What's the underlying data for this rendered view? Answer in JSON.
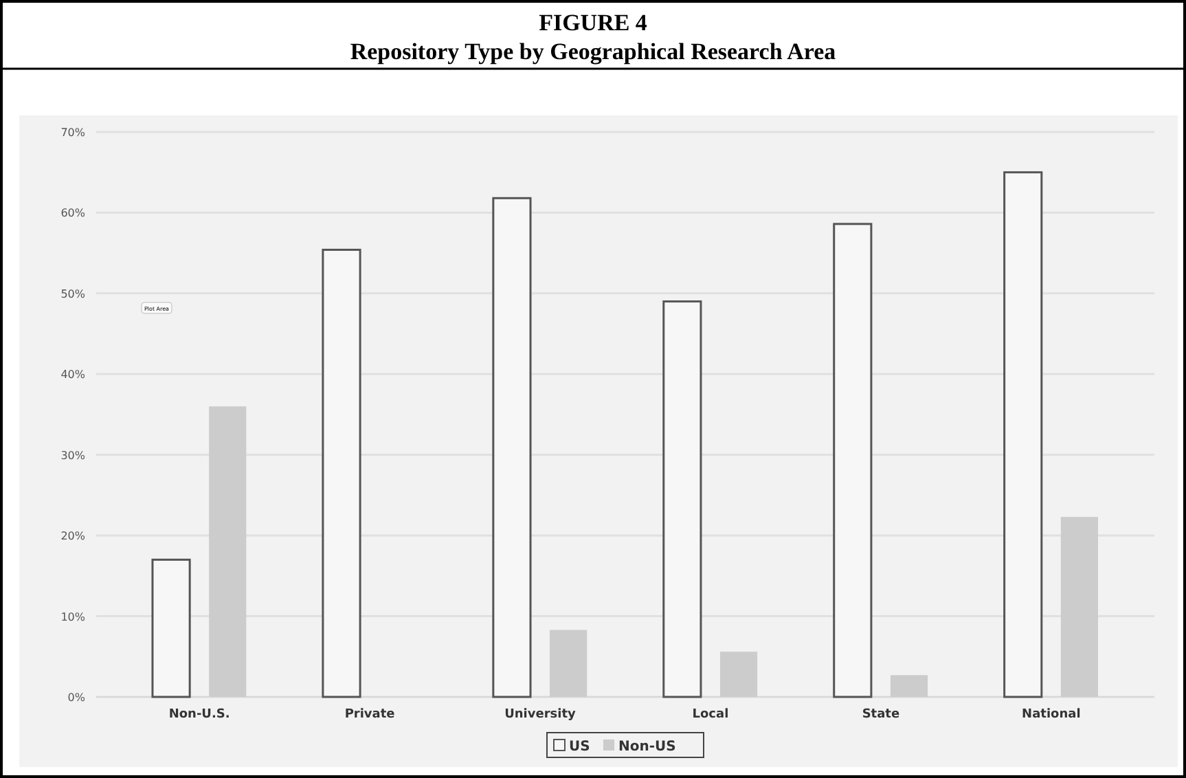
{
  "chart_data": {
    "type": "bar",
    "title": "FIGURE 4",
    "subtitle": "Repository Type by Geographical Research Area",
    "categories": [
      "Non-U.S.",
      "Private",
      "University",
      "Local",
      "State",
      "National"
    ],
    "series": [
      {
        "name": "US",
        "color": "#f7f7f7",
        "values": [
          17,
          55.4,
          61.8,
          49,
          58.6,
          65
        ]
      },
      {
        "name": "Non-US",
        "color": "#cccccc",
        "values": [
          36,
          0,
          8.3,
          5.6,
          2.7,
          22.3
        ]
      }
    ],
    "ylim": [
      0,
      70
    ],
    "yticks": [
      {
        "value": 0,
        "label": "0%"
      },
      {
        "value": 10,
        "label": "10%"
      },
      {
        "value": 20,
        "label": "20%"
      },
      {
        "value": 30,
        "label": "30%"
      },
      {
        "value": 40,
        "label": "40%"
      },
      {
        "value": 50,
        "label": "50%"
      },
      {
        "value": 60,
        "label": "60%"
      },
      {
        "value": 70,
        "label": "70%"
      }
    ],
    "grid": "y",
    "legend": "bottom",
    "annotations": [
      "Plot Area"
    ]
  }
}
